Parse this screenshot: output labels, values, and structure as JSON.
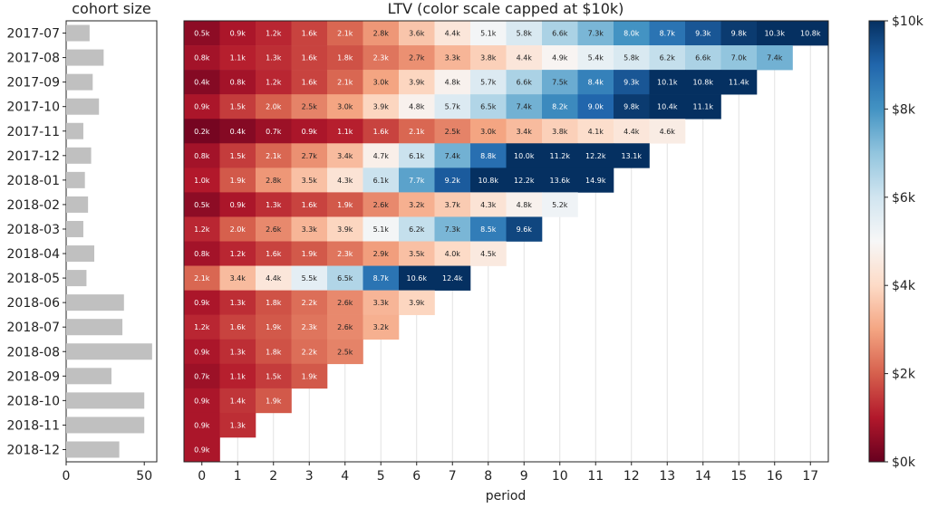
{
  "chart_data": [
    {
      "type": "bar",
      "orientation": "horizontal",
      "title": "cohort size",
      "categories": [
        "2017-07",
        "2017-08",
        "2017-09",
        "2017-10",
        "2017-11",
        "2017-12",
        "2018-01",
        "2018-02",
        "2018-03",
        "2018-04",
        "2018-05",
        "2018-06",
        "2018-07",
        "2018-08",
        "2018-09",
        "2018-10",
        "2018-11",
        "2018-12"
      ],
      "values": [
        15,
        24,
        17,
        21,
        11,
        16,
        12,
        14,
        11,
        18,
        13,
        37,
        36,
        55,
        29,
        50,
        50,
        34
      ],
      "xticks": [
        "0",
        "50"
      ],
      "xlim": [
        0,
        58
      ],
      "color": "#c0c0c0"
    },
    {
      "type": "heatmap",
      "title": "LTV (color scale capped at $10k)",
      "xlabel": "period",
      "x": [
        "0",
        "1",
        "2",
        "3",
        "4",
        "5",
        "6",
        "7",
        "8",
        "9",
        "10",
        "11",
        "12",
        "13",
        "14",
        "15",
        "16",
        "17"
      ],
      "y": [
        "2017-07",
        "2017-08",
        "2017-09",
        "2017-10",
        "2017-11",
        "2017-12",
        "2018-01",
        "2018-02",
        "2018-03",
        "2018-04",
        "2018-05",
        "2018-06",
        "2018-07",
        "2018-08",
        "2018-09",
        "2018-10",
        "2018-11",
        "2018-12"
      ],
      "values": [
        [
          0.5,
          0.9,
          1.2,
          1.6,
          2.1,
          2.8,
          3.6,
          4.4,
          5.1,
          5.8,
          6.6,
          7.3,
          8.0,
          8.7,
          9.3,
          9.8,
          10.3,
          10.8
        ],
        [
          0.8,
          1.1,
          1.3,
          1.6,
          1.8,
          2.3,
          2.7,
          3.3,
          3.8,
          4.4,
          4.9,
          5.4,
          5.8,
          6.2,
          6.6,
          7.0,
          7.4
        ],
        [
          0.4,
          0.8,
          1.2,
          1.6,
          2.1,
          3.0,
          3.9,
          4.8,
          5.7,
          6.6,
          7.5,
          8.4,
          9.3,
          10.1,
          10.8,
          11.4
        ],
        [
          0.9,
          1.5,
          2.0,
          2.5,
          3.0,
          3.9,
          4.8,
          5.7,
          6.5,
          7.4,
          8.2,
          9.0,
          9.8,
          10.4,
          11.1
        ],
        [
          0.2,
          0.4,
          0.7,
          0.9,
          1.1,
          1.6,
          2.1,
          2.5,
          3.0,
          3.4,
          3.8,
          4.1,
          4.4,
          4.6
        ],
        [
          0.8,
          1.5,
          2.1,
          2.7,
          3.4,
          4.7,
          6.1,
          7.4,
          8.8,
          10.0,
          11.2,
          12.2,
          13.1
        ],
        [
          1.0,
          1.9,
          2.8,
          3.5,
          4.3,
          6.1,
          7.7,
          9.2,
          10.8,
          12.2,
          13.6,
          14.9
        ],
        [
          0.5,
          0.9,
          1.3,
          1.6,
          1.9,
          2.6,
          3.2,
          3.7,
          4.3,
          4.8,
          5.2
        ],
        [
          1.2,
          2.0,
          2.6,
          3.3,
          3.9,
          5.1,
          6.2,
          7.3,
          8.5,
          9.6
        ],
        [
          0.8,
          1.2,
          1.6,
          1.9,
          2.3,
          2.9,
          3.5,
          4.0,
          4.5
        ],
        [
          2.1,
          3.4,
          4.4,
          5.5,
          6.5,
          8.7,
          10.6,
          12.4
        ],
        [
          0.9,
          1.3,
          1.8,
          2.2,
          2.6,
          3.3,
          3.9
        ],
        [
          1.2,
          1.6,
          1.9,
          2.3,
          2.6,
          3.2
        ],
        [
          0.9,
          1.3,
          1.8,
          2.2,
          2.5
        ],
        [
          0.7,
          1.1,
          1.5,
          1.9
        ],
        [
          0.9,
          1.4,
          1.9
        ],
        [
          0.9,
          1.3
        ],
        [
          0.9
        ]
      ],
      "value_suffix": "k",
      "colormap": "RdBu",
      "color_range": [
        0,
        10
      ],
      "colorbar": {
        "ticks": [
          "$0k",
          "$2k",
          "$4k",
          "$6k",
          "$8k",
          "$10k"
        ],
        "tick_values": [
          0,
          2,
          4,
          6,
          8,
          10
        ]
      },
      "grid": true,
      "legend": "right"
    }
  ]
}
